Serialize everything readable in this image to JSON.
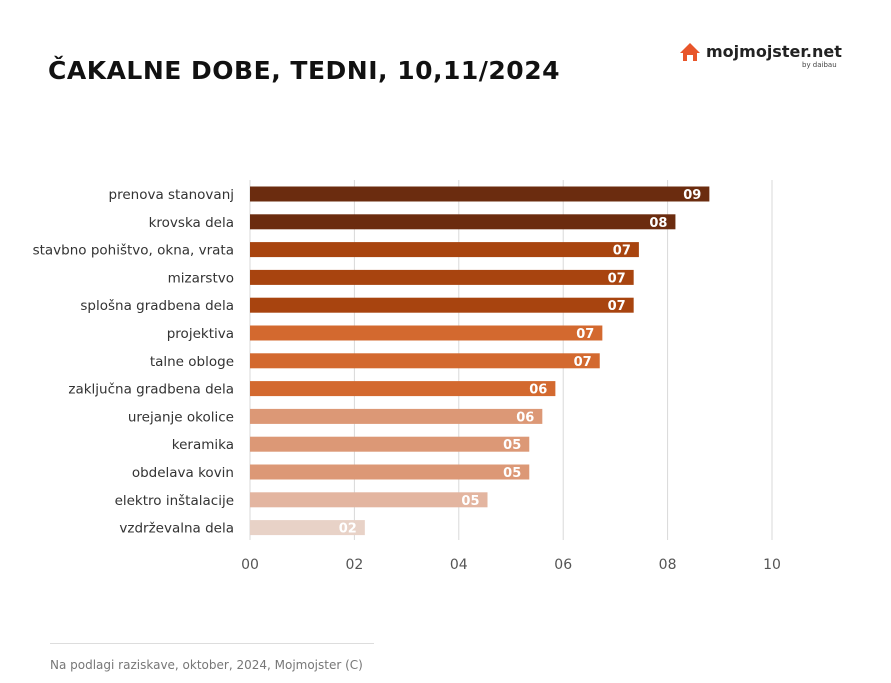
{
  "title": "ČAKALNE DOBE, TEDNI, 10,11/2024",
  "logo": {
    "text": "mojmojster.net",
    "sub": "by daibau",
    "icon": "house-logo-icon"
  },
  "source": "Na podlagi raziskave, oktober, 2024, Mojmojster (C)",
  "chart_data": {
    "type": "bar",
    "orientation": "horizontal",
    "categories": [
      "prenova stanovanj",
      "krovska dela",
      "stavbno pohištvo, okna, vrata",
      "mizarstvo",
      "splošna gradbena dela",
      "projektiva",
      "talne obloge",
      "zaključna gradbena dela",
      "urejanje okolice",
      "keramika",
      "obdelava kovin",
      "elektro inštalacije",
      "vzdrževalna dela"
    ],
    "values": [
      8.8,
      8.15,
      7.45,
      7.35,
      7.35,
      6.75,
      6.7,
      5.85,
      5.6,
      5.35,
      5.35,
      4.55,
      2.2
    ],
    "value_labels": [
      "09",
      "08",
      "07",
      "07",
      "07",
      "07",
      "07",
      "06",
      "06",
      "05",
      "05",
      "05",
      "02"
    ],
    "colors": [
      "#6b2c0f",
      "#6b2c0f",
      "#a8440f",
      "#a8440f",
      "#a8440f",
      "#d3692f",
      "#d3692f",
      "#d3692f",
      "#dc9876",
      "#dc9876",
      "#dc9876",
      "#e3b5a0",
      "#e8d2c7"
    ],
    "xticks": [
      "00",
      "02",
      "04",
      "06",
      "08",
      "10"
    ],
    "xtick_values": [
      0,
      2,
      4,
      6,
      8,
      10
    ],
    "xlim": [
      0,
      10
    ],
    "grid": true,
    "xlabel": "",
    "ylabel": ""
  }
}
